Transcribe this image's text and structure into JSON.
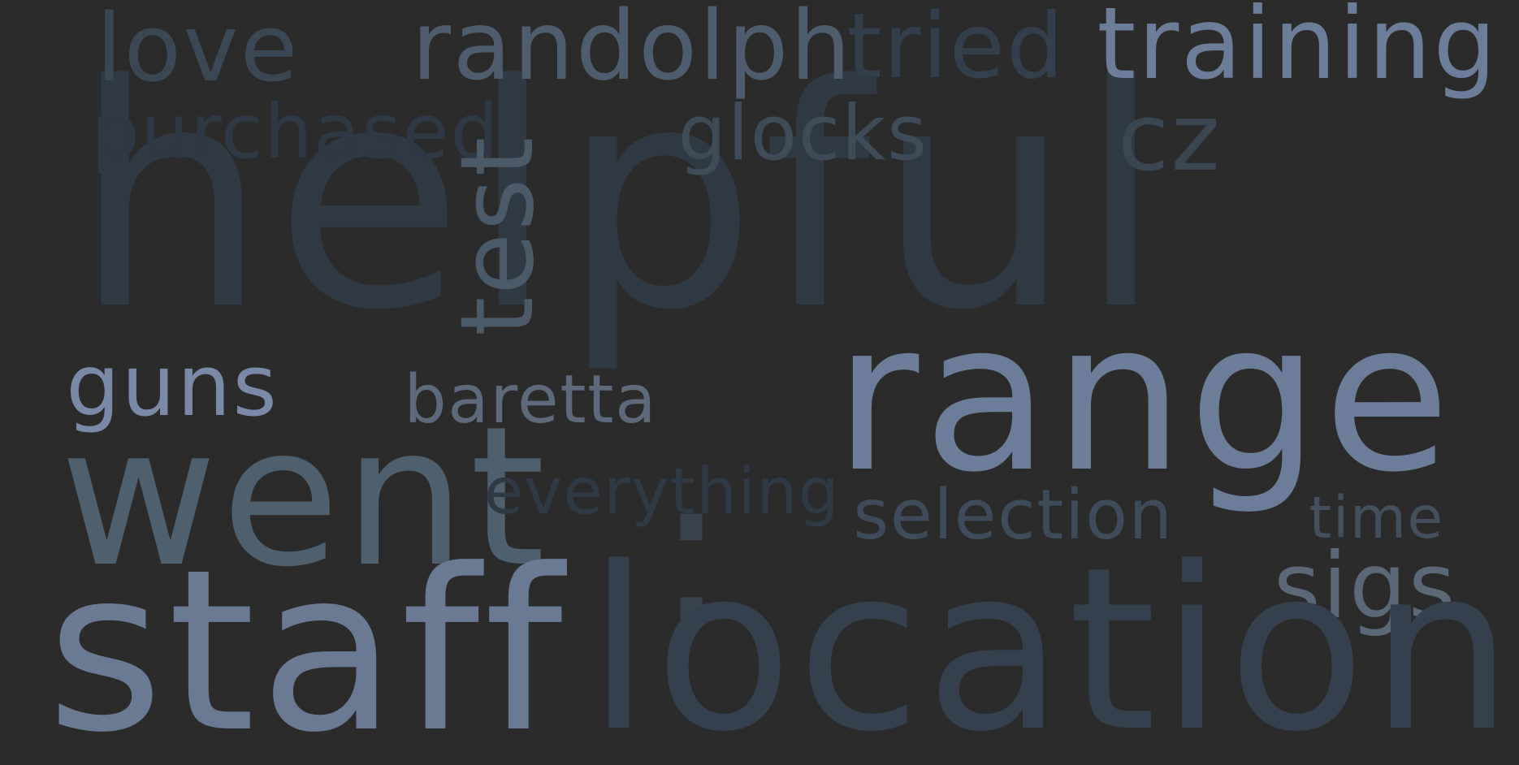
{
  "word_cloud": {
    "background": "#2b2b2b",
    "words": [
      {
        "id": "helpful",
        "text": "helpful",
        "color": "#2f3a45"
      },
      {
        "id": "love",
        "text": "love",
        "color": "#3a4856"
      },
      {
        "id": "randolph",
        "text": "randolph",
        "color": "#4d5d6e"
      },
      {
        "id": "tried",
        "text": "tried",
        "color": "#333f4c"
      },
      {
        "id": "training",
        "text": "training",
        "color": "#6c7d99"
      },
      {
        "id": "purchased",
        "text": "purchased",
        "color": "#2e3945"
      },
      {
        "id": "glocks",
        "text": "glocks",
        "color": "#3e4b58"
      },
      {
        "id": "cz",
        "text": "cz",
        "color": "#3a4753"
      },
      {
        "id": "test",
        "text": "test",
        "color": "#4b5a69"
      },
      {
        "id": "guns",
        "text": "guns",
        "color": "#7b89a9"
      },
      {
        "id": "baretta",
        "text": "baretta",
        "color": "#5d6a7c"
      },
      {
        "id": "range",
        "text": "range",
        "color": "#6c7d99"
      },
      {
        "id": "went",
        "text": "went",
        "color": "#4e5f6d"
      },
      {
        "id": "everything",
        "text": "everything",
        "color": "#2f3a46"
      },
      {
        "id": "selection",
        "text": "selection",
        "color": "#3e4b5a"
      },
      {
        "id": "time",
        "text": "time",
        "color": "#434f5d"
      },
      {
        "id": "colon",
        "text": ":",
        "color": "#3a4450"
      },
      {
        "id": "sigs",
        "text": "sigs",
        "color": "#5a6878"
      },
      {
        "id": "staff",
        "text": "staff",
        "color": "#6a7a95"
      },
      {
        "id": "location",
        "text": "location",
        "color": "#35414e"
      }
    ]
  }
}
